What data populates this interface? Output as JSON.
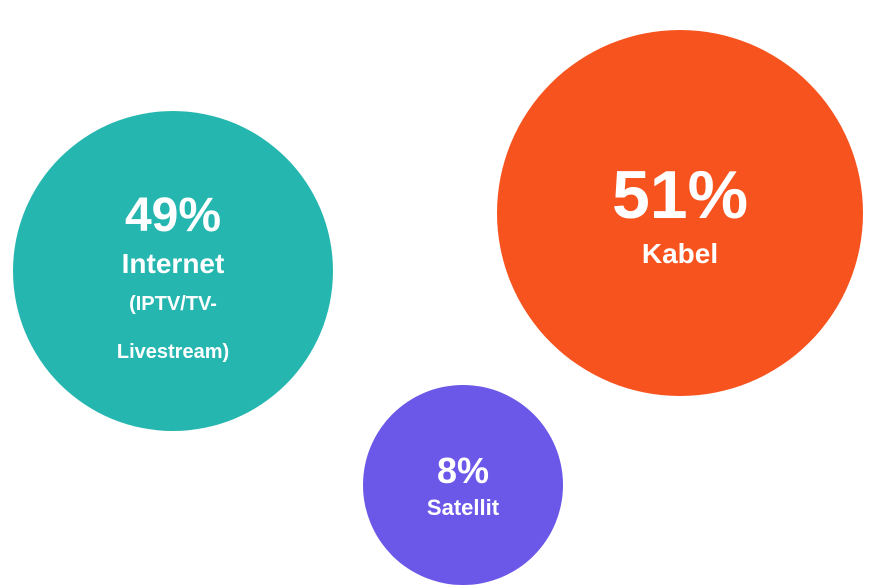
{
  "chart_data": {
    "type": "bubble",
    "categories": [
      "Internet",
      "Kabel",
      "Satellit"
    ],
    "sublabels": [
      "(IPTV/TV-Livestream)",
      null,
      null
    ],
    "values": [
      49,
      51,
      8
    ],
    "value_labels": [
      "49%",
      "51%",
      "8%"
    ],
    "colors": [
      "#26b6b0",
      "#f7531f",
      "#6b57e8"
    ]
  }
}
